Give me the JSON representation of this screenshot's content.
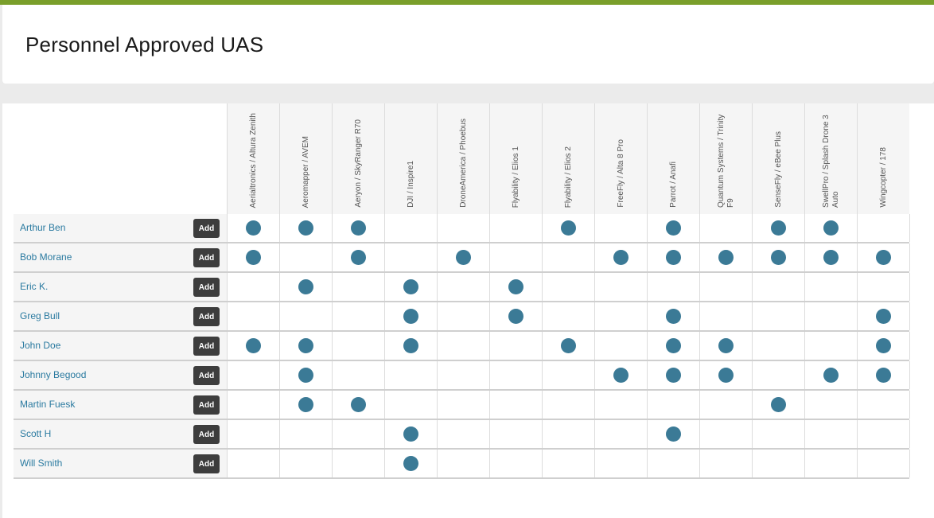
{
  "page": {
    "title": "Personnel Approved UAS"
  },
  "colors": {
    "accent_bar": "#7a9f2b",
    "dot": "#3b7a96",
    "link": "#2a7aa0"
  },
  "add_label": "Add",
  "aircraft": [
    "Aerialtronics / Altura Zenith",
    "Aeromapper / AVEM",
    "Aeryon / SkyRanger R70",
    "DJI / Inspire1",
    "DroneAmerica / Phoebus",
    "Flyability / Elios 1",
    "Flyability / Elios 2",
    "FreeFly / Alta 8 Pro",
    "Parrot / Anafi",
    "Quantum Systems / Trinity F9",
    "SenseFly / eBee Plus",
    "SwellPro / Splash Drone 3 Auto",
    "Wingcopter / 178"
  ],
  "personnel": [
    {
      "name": "Arthur Ben",
      "approved": [
        1,
        1,
        1,
        0,
        0,
        0,
        1,
        0,
        1,
        0,
        1,
        1,
        0
      ]
    },
    {
      "name": "Bob Morane",
      "approved": [
        1,
        0,
        1,
        0,
        1,
        0,
        0,
        1,
        1,
        1,
        1,
        1,
        1
      ]
    },
    {
      "name": "Eric K.",
      "approved": [
        0,
        1,
        0,
        1,
        0,
        1,
        0,
        0,
        0,
        0,
        0,
        0,
        0
      ]
    },
    {
      "name": "Greg Bull",
      "approved": [
        0,
        0,
        0,
        1,
        0,
        1,
        0,
        0,
        1,
        0,
        0,
        0,
        1
      ]
    },
    {
      "name": "John Doe",
      "approved": [
        1,
        1,
        0,
        1,
        0,
        0,
        1,
        0,
        1,
        1,
        0,
        0,
        1
      ]
    },
    {
      "name": "Johnny Begood",
      "approved": [
        0,
        1,
        0,
        0,
        0,
        0,
        0,
        1,
        1,
        1,
        0,
        1,
        1
      ]
    },
    {
      "name": "Martin Fuesk",
      "approved": [
        0,
        1,
        1,
        0,
        0,
        0,
        0,
        0,
        0,
        0,
        1,
        0,
        0
      ]
    },
    {
      "name": "Scott H",
      "approved": [
        0,
        0,
        0,
        1,
        0,
        0,
        0,
        0,
        1,
        0,
        0,
        0,
        0
      ]
    },
    {
      "name": "Will Smith",
      "approved": [
        0,
        0,
        0,
        1,
        0,
        0,
        0,
        0,
        0,
        0,
        0,
        0,
        0
      ]
    }
  ]
}
